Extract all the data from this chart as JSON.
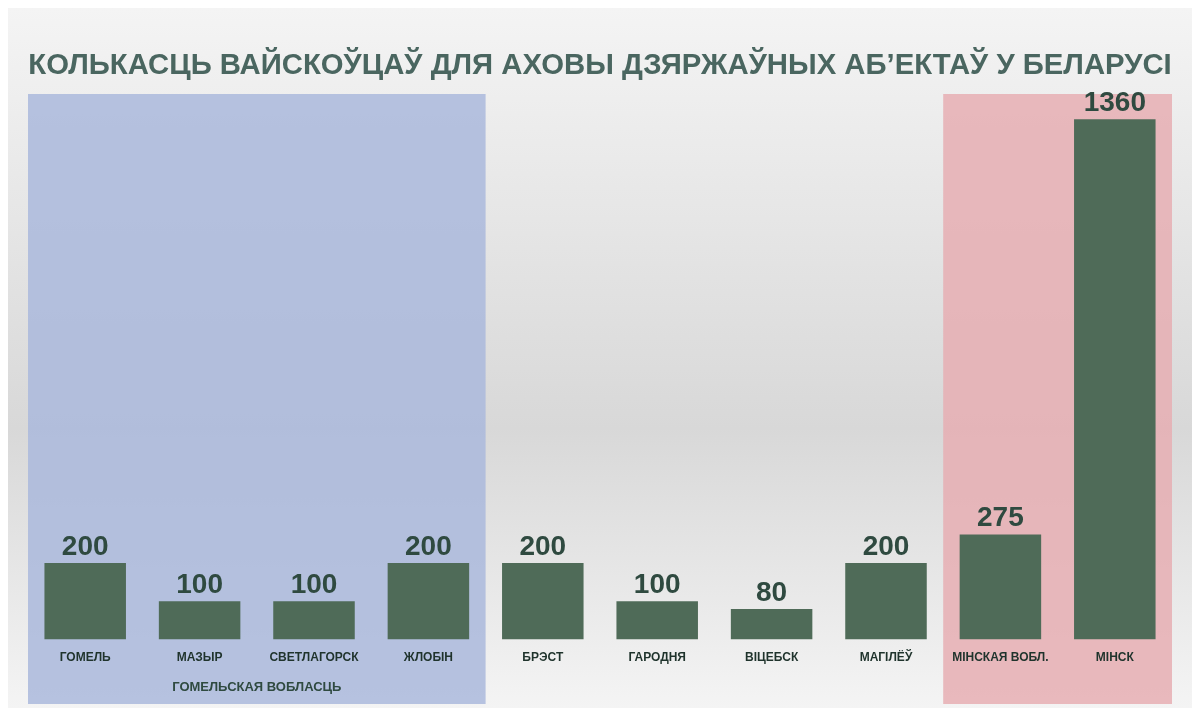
{
  "chart_data": {
    "type": "bar",
    "title": "КОЛЬКАСЦЬ ВАЙСКОЎЦАЎ ДЛЯ АХОВЫ ДЗЯРЖАЎНЫХ АБ’ЕКТАЎ У БЕЛАРУСІ",
    "categories": [
      "ГОМЕЛЬ",
      "МАЗЫР",
      "СВЕТЛАГОРСК",
      "ЖЛОБІН",
      "БРЭСТ",
      "ГАРОДНЯ",
      "ВІЦЕБСК",
      "МАГІЛЁЎ",
      "МІНСКАЯ ВОБЛ.",
      "МІНСК"
    ],
    "values": [
      200,
      100,
      100,
      200,
      200,
      100,
      80,
      200,
      275,
      1360
    ],
    "color": "#4f6b58",
    "data_labels": true,
    "bands": [
      {
        "axis": "x",
        "from": "ГОМЕЛЬ",
        "to": "ЖЛОБІН",
        "label": "ГОМЕЛЬСКАЯ ВОБЛАСЦЬ",
        "color": "#aab8dc"
      },
      {
        "axis": "x",
        "from": "МІНСКАЯ ВОБЛ.",
        "to": "МІНСК",
        "color": "#e6aeb3"
      }
    ]
  }
}
